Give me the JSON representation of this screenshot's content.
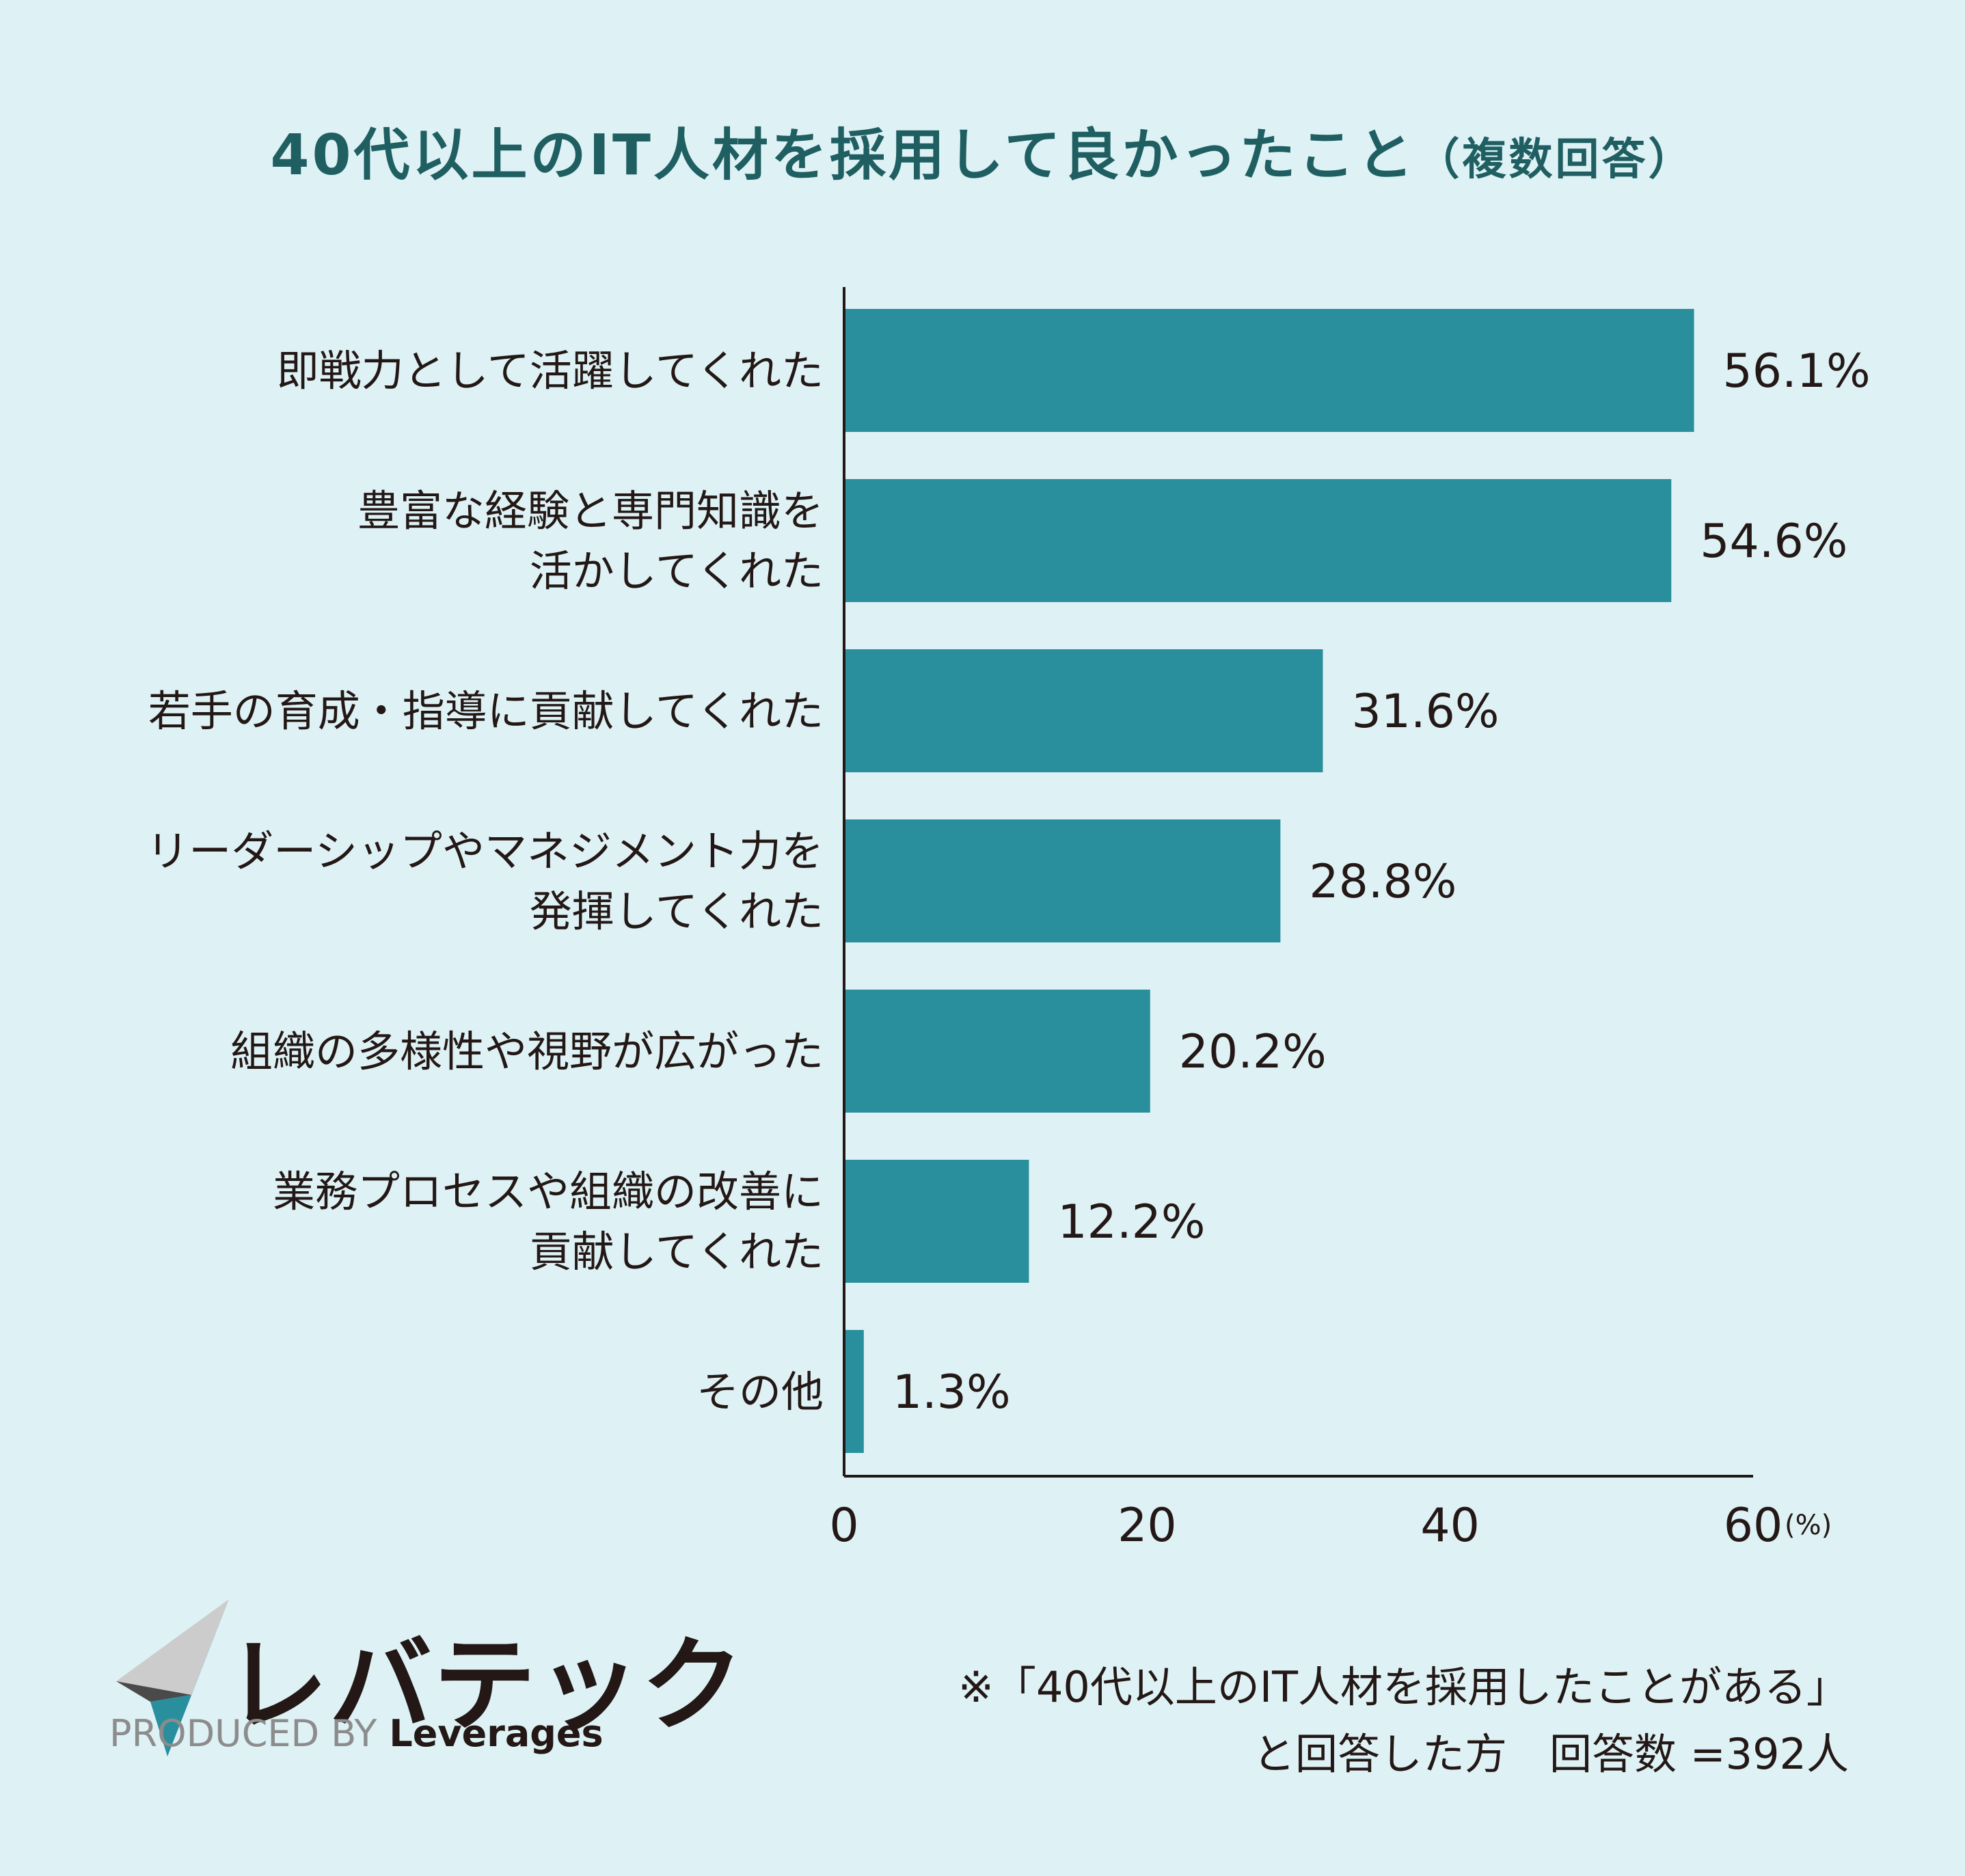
{
  "title": "40代以上のIT人材を採用して良かったこと",
  "subtitle": "（複数回答）",
  "chart_data": {
    "type": "bar",
    "orientation": "horizontal",
    "title": "40代以上のIT人材を採用して良かったこと（複数回答）",
    "categories": [
      [
        "即戦力として活躍してくれた"
      ],
      [
        "豊富な経験と専門知識を",
        "活かしてくれた"
      ],
      [
        "若手の育成・指導に貢献してくれた"
      ],
      [
        "リーダーシップやマネジメント力を",
        "発揮してくれた"
      ],
      [
        "組織の多様性や視野が広がった"
      ],
      [
        "業務プロセスや組織の改善に",
        "貢献してくれた"
      ],
      [
        "その他"
      ]
    ],
    "values": [
      56.1,
      54.6,
      31.6,
      28.8,
      20.2,
      12.2,
      1.3
    ],
    "value_labels": [
      "56.1%",
      "54.6%",
      "31.6%",
      "28.8%",
      "20.2%",
      "12.2%",
      "1.3%"
    ],
    "xlim": [
      0,
      60
    ],
    "ticks": [
      0,
      20,
      40,
      60
    ],
    "tick_labels": [
      "0",
      "20",
      "40",
      "60"
    ],
    "unit_label": "(%)",
    "bar_color": "#2a8f9d",
    "grid": false
  },
  "logo": {
    "text": "レバテック",
    "produced_by": "PRODUCED BY",
    "brand": "Leverages"
  },
  "note": {
    "line1": "※「40代以上のIT人材を採用したことがある」",
    "line2": "と回答した方　回答数 =392人"
  }
}
